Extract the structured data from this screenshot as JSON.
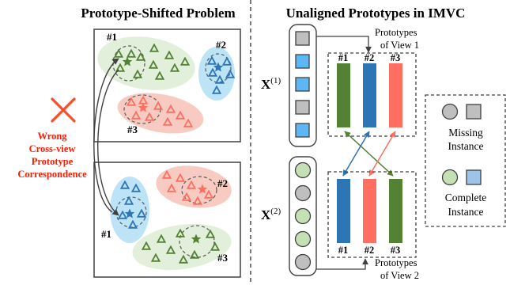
{
  "left": {
    "title": "Prototype-Shifted Problem",
    "wrong_label": [
      "Wrong",
      "Cross-view",
      "Prototype",
      "Correspondence"
    ],
    "top_panel": {
      "labels": [
        "#1",
        "#2",
        "#3"
      ]
    },
    "bottom_panel": {
      "labels": [
        "#2",
        "#1",
        "#3"
      ]
    }
  },
  "right": {
    "title": "Unaligned Prototypes in IMVC",
    "view1": {
      "var_base": "X",
      "var_sup": "(1)",
      "caption": [
        "Prototypes",
        "of View 1"
      ],
      "bar_labels": [
        "#1",
        "#2",
        "#3"
      ]
    },
    "view2": {
      "var_base": "X",
      "var_sup": "(2)",
      "caption": [
        "Prototypes",
        "of View 2"
      ],
      "bar_labels": [
        "#1",
        "#2",
        "#3"
      ]
    },
    "legend": {
      "missing": [
        "Missing",
        "Instance"
      ],
      "complete": [
        "Complete",
        "Instance"
      ]
    }
  },
  "colors": {
    "green": "#548235",
    "blue": "#2E75B6",
    "red": "#FF6F61",
    "green_blob": "#E2EFDA",
    "blue_blob": "#BDE3F7",
    "red_blob": "#F8CBC2",
    "grey_fill": "#BFBFBF",
    "light_green": "#C5E0B4",
    "light_blue": "#5BB8F5",
    "cross": "#FF4A26"
  }
}
